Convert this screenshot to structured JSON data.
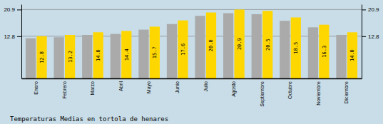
{
  "chart_data": {
    "type": "bar",
    "title": "Temperaturas Medias en tortola de henares",
    "categories": [
      "Enero",
      "Febrero",
      "Marzo",
      "Abril",
      "Mayo",
      "Junio",
      "Julio",
      "Agosto",
      "Septiembre",
      "Octubre",
      "Noviembre",
      "Diciembre"
    ],
    "series": [
      {
        "color": "#AAAAAA",
        "values": [
          12.2,
          12.5,
          13.2,
          13.5,
          14.8,
          16.5,
          19.0,
          19.8,
          19.5,
          17.5,
          15.5,
          13.2
        ]
      },
      {
        "color": "#FFD700",
        "values": [
          12.8,
          13.2,
          14.0,
          14.4,
          15.7,
          17.6,
          20.0,
          20.9,
          20.5,
          18.5,
          16.3,
          14.0
        ],
        "data_labels": true,
        "value_labels": [
          "12.8",
          "13.2",
          "14.0",
          "14.4",
          "15.7",
          "17.6",
          "20.0",
          "20.9",
          "20.5",
          "18.5",
          "16.3",
          "14.0"
        ]
      }
    ],
    "ylim": [
      0,
      22.5
    ],
    "yticks": [
      12.8,
      20.9
    ],
    "y2lim": [
      0,
      22.5
    ],
    "y2ticks": [
      12.8,
      20.9
    ],
    "grid": true
  }
}
